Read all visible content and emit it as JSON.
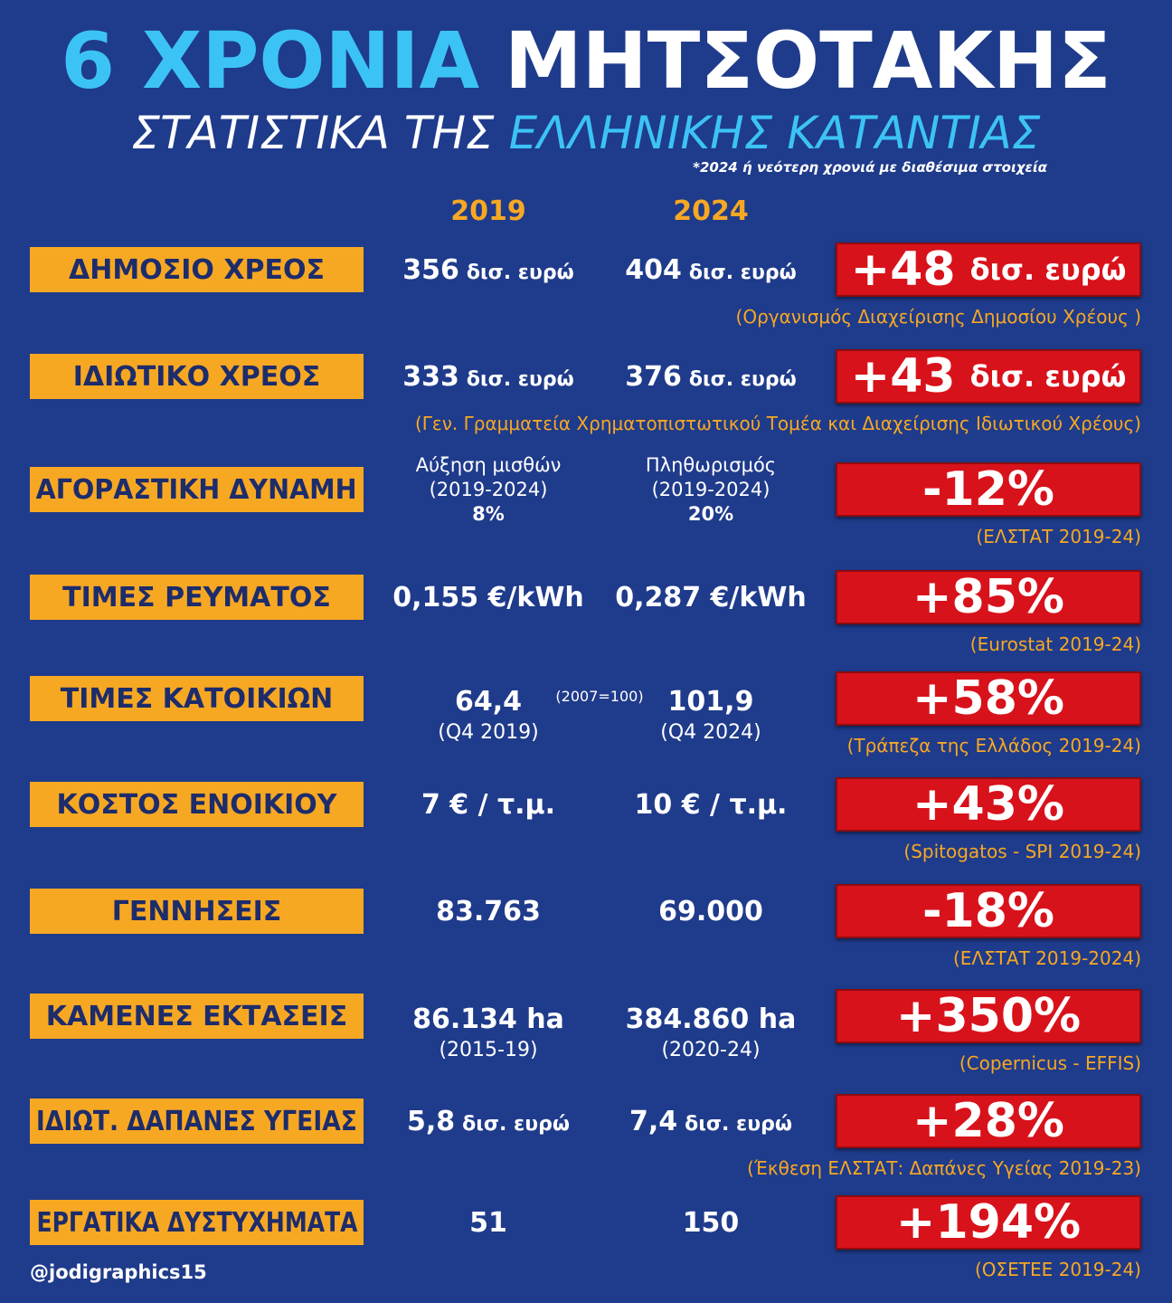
{
  "header": {
    "title": [
      "6 ΧΡΟΝΙΑ",
      "ΜΗΤΣΟΤΑΚΗΣ"
    ],
    "subtitle": [
      "ΣΤΑΤΙΣΤΙΚΑ ΤΗΣ",
      "ΕΛΛΗΝΙΚΗΣ ΚΑΤΑΝΤΙΑΣ"
    ],
    "note": "*2024 ή νεότερη χρονιά με διαθέσιμα στοιχεία"
  },
  "columns": [
    "2019",
    "2024"
  ],
  "rows": [
    {
      "label": "ΔΗΜΟΣΙΟ ΧΡΕΟΣ",
      "cells": [
        {
          "text": "356",
          "unit": "δισ. ευρώ"
        },
        {
          "text": "404",
          "unit": "δισ. ευρώ"
        }
      ],
      "change": {
        "text": "+48",
        "unit": "δισ. ευρώ"
      },
      "source": "(Οργανισμός Διαχείρισης Δημοσίου Χρέους )"
    },
    {
      "label": "ΙΔΙΩΤΙΚΟ ΧΡΕΟΣ",
      "cells": [
        {
          "text": "333",
          "unit": "δισ. ευρώ"
        },
        {
          "text": "376",
          "unit": "δισ. ευρώ"
        }
      ],
      "change": {
        "text": "+43",
        "unit": "δισ. ευρώ"
      },
      "source": "(Γεν. Γραμματεία Χρηματοπιστωτικού Τομέα και Διαχείρισης Ιδιωτικού Χρέους)"
    },
    {
      "label": "ΑΓΟΡΑΣΤΙΚΗ ΔΥΝΑΜΗ",
      "cells": [
        {
          "lines": [
            "Αύξηση μισθών",
            "(2019-2024)",
            "8%"
          ]
        },
        {
          "lines": [
            "Πληθωρισμός",
            "(2019-2024)",
            "20%"
          ]
        }
      ],
      "change": {
        "text": "-12%"
      },
      "source": "(ΕΛΣΤΑΤ 2019-24)"
    },
    {
      "label": "ΤΙΜΕΣ ΡΕΥΜΑΤΟΣ",
      "cells": [
        {
          "text": "0,155 €/kWh"
        },
        {
          "text": "0,287 €/kWh"
        }
      ],
      "change": {
        "text": "+85%"
      },
      "source": "(Eurostat 2019-24)"
    },
    {
      "label": "ΤΙΜΕΣ ΚΑΤΟΙΚΙΩΝ",
      "cells": [
        {
          "text": "64,4",
          "sub": "(Q4 2019)"
        },
        {
          "text": "101,9",
          "sub": "(Q4 2024)"
        }
      ],
      "mid_note": "(2007=100)",
      "change": {
        "text": "+58%"
      },
      "source": "(Τράπεζα της Ελλάδος 2019-24)"
    },
    {
      "label": "ΚΟΣΤΟΣ ΕΝΟΙΚΙΟΥ",
      "cells": [
        {
          "text": "7 € / τ.μ."
        },
        {
          "text": "10 € / τ.μ."
        }
      ],
      "change": {
        "text": "+43%"
      },
      "source": "(Spitogatos - SPI 2019-24)"
    },
    {
      "label": "ΓΕΝΝΗΣΕΙΣ",
      "cells": [
        {
          "text": "83.763"
        },
        {
          "text": "69.000"
        }
      ],
      "change": {
        "text": "-18%"
      },
      "source": "(ΕΛΣΤΑΤ 2019-2024)"
    },
    {
      "label": "ΚΑΜΕΝΕΣ ΕΚΤΑΣΕΙΣ",
      "cells": [
        {
          "text": "86.134 ha",
          "sub": "(2015-19)"
        },
        {
          "text": "384.860 ha",
          "sub": "(2020-24)"
        }
      ],
      "change": {
        "text": "+350%"
      },
      "source": "(Copernicus - EFFIS)"
    },
    {
      "label": "ΙΔΙΩΤ. ΔΑΠΑΝΕΣ ΥΓΕΙΑΣ",
      "cells": [
        {
          "text": "5,8",
          "unit": "δισ. ευρώ"
        },
        {
          "text": "7,4",
          "unit": "δισ. ευρώ"
        }
      ],
      "change": {
        "text": "+28%"
      },
      "source": "(Έκθεση ΕΛΣΤΑΤ: Δαπάνες Υγείας 2019-23)"
    },
    {
      "label": "ΕΡΓΑΤΙΚΑ ΔΥΣΤΥΧΗΜΑΤΑ",
      "cells": [
        {
          "text": "51"
        },
        {
          "text": "150"
        }
      ],
      "change": {
        "text": "+194%"
      },
      "source": "(ΟΣΕΤΕΕ 2019-24)"
    }
  ],
  "footer": "@jodigraphics15"
}
